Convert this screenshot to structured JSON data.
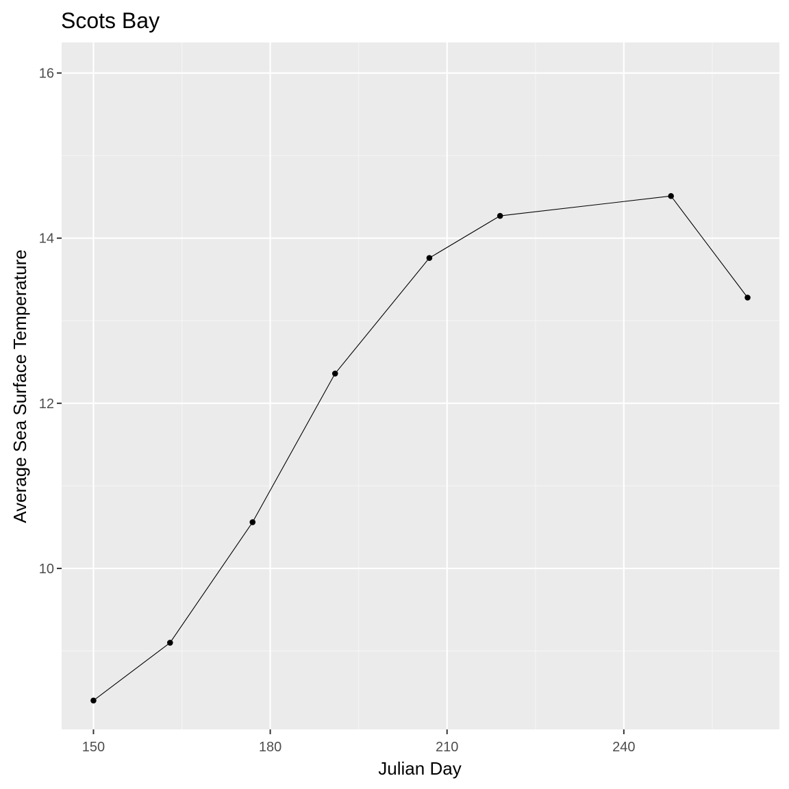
{
  "chart_data": {
    "type": "line",
    "title": "Scots Bay",
    "xlabel": "Julian Day",
    "ylabel": "Average Sea Surface Temperature",
    "xlim": [
      144.6,
      266.4
    ],
    "ylim": [
      8.05,
      16.37
    ],
    "x_ticks": [
      150,
      180,
      210,
      240
    ],
    "x_tick_labels": [
      "150",
      "180",
      "210",
      "240"
    ],
    "x_minor_ticks": [
      165,
      195,
      225,
      255
    ],
    "y_ticks": [
      10,
      12,
      14,
      16
    ],
    "y_tick_labels": [
      "10",
      "12",
      "14",
      "16"
    ],
    "y_minor_ticks": [
      9,
      11,
      13,
      15
    ],
    "grid": true,
    "series": [
      {
        "name": "Scots Bay",
        "x": [
          150,
          163,
          177,
          191,
          207,
          219,
          248,
          261
        ],
        "y": [
          8.4,
          9.1,
          10.56,
          12.36,
          13.76,
          14.27,
          14.51,
          13.28
        ]
      }
    ],
    "colors": {
      "panel_background": "#ebebeb",
      "grid_major": "#ffffff",
      "grid_minor": "#f5f5f5",
      "line": "#000000",
      "point": "#000000",
      "tick_label": "#4d4d4d",
      "tick_mark": "#333333"
    }
  }
}
